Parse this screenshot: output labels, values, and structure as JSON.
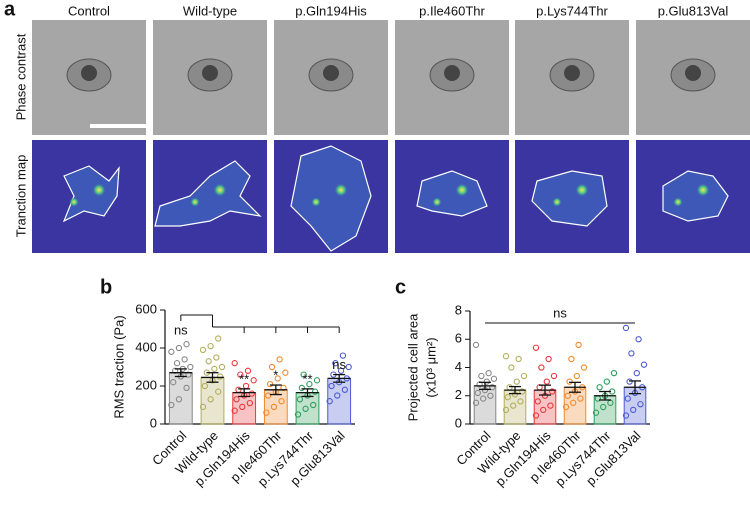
{
  "panel_a": {
    "label": "a",
    "columns": [
      "Control",
      "Wild-type",
      "p.Gln194His",
      "p.Ile460Thr",
      "p.Lys744Thr",
      "p.Glu813Val"
    ],
    "rows": [
      "Phase contrast",
      "Tranction map"
    ]
  },
  "chart_data": [
    {
      "type": "bar",
      "label": "b",
      "ylabel": "RMS traction (Pa)",
      "categories": [
        "Control",
        "Wild-type",
        "p.Gln194His",
        "p.Ile460Thr",
        "p.Lys744Thr",
        "p.Glu813Val"
      ],
      "values": [
        270,
        245,
        165,
        180,
        165,
        240
      ],
      "errors": [
        20,
        25,
        20,
        25,
        20,
        20
      ],
      "colors": [
        "#888888",
        "#b3ad5c",
        "#e8383d",
        "#f0892b",
        "#2e9e5b",
        "#4b5bd2"
      ],
      "annotations": [
        "ns",
        null,
        "**",
        "*",
        "**",
        "ns"
      ],
      "bracket": "from-wildtype",
      "points": [
        [
          100,
          130,
          190,
          220,
          250,
          260,
          280,
          290,
          300,
          320,
          340,
          380,
          400,
          420
        ],
        [
          90,
          130,
          170,
          200,
          230,
          250,
          270,
          290,
          300,
          330,
          350,
          390,
          410,
          450
        ],
        [
          70,
          90,
          110,
          130,
          150,
          160,
          180,
          200,
          230,
          260,
          280,
          320
        ],
        [
          60,
          90,
          120,
          150,
          170,
          190,
          210,
          240,
          270,
          300,
          340
        ],
        [
          50,
          80,
          100,
          130,
          150,
          170,
          190,
          210,
          230,
          260
        ],
        [
          120,
          150,
          180,
          200,
          220,
          240,
          260,
          280,
          300,
          320,
          360
        ]
      ],
      "ylim": [
        0,
        600
      ],
      "yticks": [
        0,
        200,
        400,
        600
      ]
    },
    {
      "type": "bar",
      "label": "c",
      "ylabel": "Projected cell area",
      "ylabel2": "(x10³ μm²)",
      "categories": [
        "Control",
        "Wild-type",
        "p.Gln194His",
        "p.Ile460Thr",
        "p.Lys744Thr",
        "p.Glu813Val"
      ],
      "values": [
        2.7,
        2.4,
        2.4,
        2.6,
        2.0,
        2.6
      ],
      "errors": [
        0.25,
        0.25,
        0.35,
        0.35,
        0.3,
        0.45
      ],
      "colors": [
        "#888888",
        "#b3ad5c",
        "#e8383d",
        "#f0892b",
        "#2e9e5b",
        "#4b5bd2"
      ],
      "annotations": [
        "ns"
      ],
      "bracket": "all",
      "points": [
        [
          1.5,
          1.8,
          2.0,
          2.2,
          2.4,
          2.6,
          2.8,
          3.0,
          3.2,
          3.4,
          3.6,
          5.6
        ],
        [
          1.0,
          1.3,
          1.6,
          1.9,
          2.1,
          2.3,
          2.6,
          3.0,
          3.4,
          4.0,
          4.6,
          4.8
        ],
        [
          0.6,
          1.0,
          1.3,
          1.6,
          2.0,
          2.3,
          2.6,
          3.0,
          3.4,
          4.0,
          4.6,
          5.4
        ],
        [
          1.2,
          1.5,
          1.8,
          2.0,
          2.3,
          2.6,
          3.0,
          3.4,
          4.0,
          4.6,
          5.6
        ],
        [
          0.8,
          1.2,
          1.5,
          1.8,
          2.0,
          2.3,
          2.6,
          3.0,
          3.6
        ],
        [
          0.6,
          1.0,
          1.4,
          1.8,
          2.2,
          2.6,
          3.0,
          3.6,
          4.2,
          5.0,
          6.0,
          6.8
        ]
      ],
      "ylim": [
        0,
        8
      ],
      "yticks": [
        0,
        2,
        4,
        6,
        8
      ]
    }
  ]
}
